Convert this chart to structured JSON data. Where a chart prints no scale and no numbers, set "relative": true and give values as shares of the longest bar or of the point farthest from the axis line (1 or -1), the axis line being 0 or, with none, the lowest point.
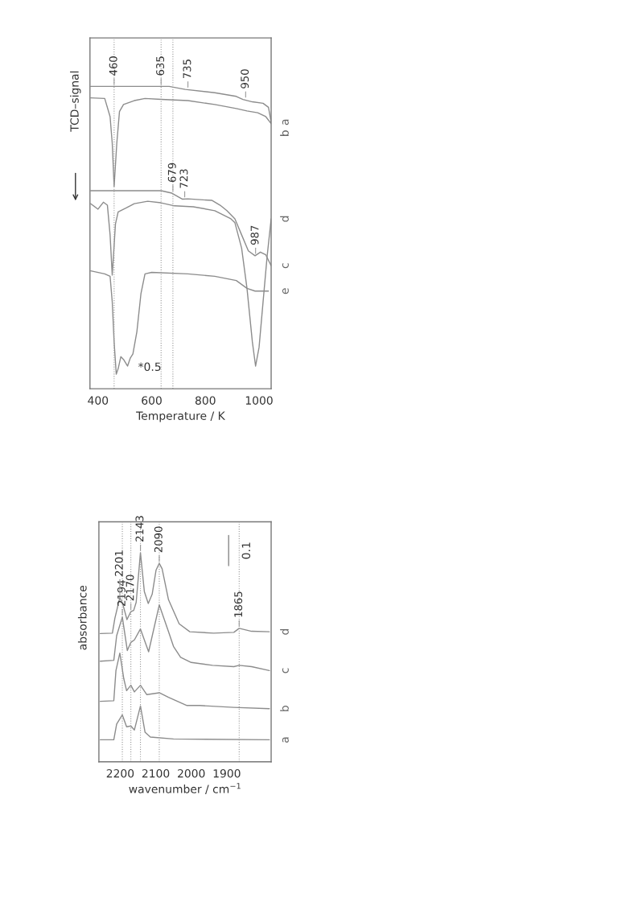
{
  "chart_data": [
    {
      "type": "line",
      "relative": true,
      "xlabel": "Temperature / K",
      "ylabel": "TCD–signal",
      "xlim": [
        370,
        1045
      ],
      "xticks": [
        400,
        600,
        800,
        1000
      ],
      "grid": false,
      "legend": false,
      "series": [
        {
          "name": "a",
          "color": "#8c8c8c",
          "x": [
            373,
            665,
            725,
            835,
            915,
            940,
            975,
            1015,
            1035,
            1045
          ],
          "values": [
            1.0,
            1.0,
            0.99,
            0.979,
            0.967,
            0.957,
            0.949,
            0.944,
            0.931,
            0.882
          ]
        },
        {
          "name": "b",
          "color": "#8c8c8c",
          "x": [
            373,
            425,
            445,
            453,
            460,
            470,
            480,
            495,
            535,
            575,
            635,
            735,
            835,
            915,
            955,
            995,
            1025,
            1045
          ],
          "values": [
            0.962,
            0.96,
            0.9,
            0.812,
            0.669,
            0.812,
            0.917,
            0.94,
            0.953,
            0.96,
            0.957,
            0.953,
            0.94,
            0.927,
            0.919,
            0.913,
            0.9,
            0.877
          ]
        },
        {
          "name": "c",
          "color": "#8c8c8c",
          "x": [
            373,
            635,
            675,
            715,
            735,
            825,
            855,
            880,
            910,
            935,
            960,
            985,
            1005,
            1025,
            1045
          ],
          "values": [
            0.655,
            0.655,
            0.647,
            0.627,
            0.628,
            0.623,
            0.607,
            0.589,
            0.562,
            0.509,
            0.456,
            0.44,
            0.452,
            0.443,
            0.407
          ]
        },
        {
          "name": "d",
          "color": "#8c8c8c",
          "x": [
            373,
            400,
            420,
            435,
            445,
            453,
            465,
            475,
            505,
            535,
            585,
            635,
            685,
            755,
            835,
            895,
            910,
            935,
            955,
            975,
            987,
            1000,
            1015,
            1030,
            1045
          ],
          "values": [
            0.612,
            0.594,
            0.617,
            0.607,
            0.509,
            0.376,
            0.545,
            0.585,
            0.598,
            0.612,
            0.62,
            0.615,
            0.605,
            0.602,
            0.589,
            0.562,
            0.549,
            0.465,
            0.332,
            0.155,
            0.075,
            0.137,
            0.288,
            0.438,
            0.562
          ]
        },
        {
          "name": "e",
          "color": "#8c8c8c",
          "x": [
            373,
            425,
            445,
            453,
            460,
            468,
            475,
            485,
            495,
            510,
            520,
            530,
            545,
            560,
            575,
            600,
            735,
            835,
            915,
            955,
            985,
            1035
          ],
          "values": [
            0.39,
            0.38,
            0.372,
            0.288,
            0.155,
            0.048,
            0.066,
            0.106,
            0.097,
            0.075,
            0.101,
            0.115,
            0.19,
            0.315,
            0.38,
            0.385,
            0.38,
            0.372,
            0.358,
            0.332,
            0.323,
            0.323
          ]
        }
      ],
      "ref_lines": [
        {
          "axis": "x",
          "value": 460,
          "line_style": "dotted"
        },
        {
          "axis": "x",
          "value": 635,
          "line_style": "dotted"
        },
        {
          "axis": "x",
          "value": 679,
          "line_style": "dotted"
        }
      ],
      "annotations": [
        {
          "text": "460",
          "x": 460,
          "y": 1.0
        },
        {
          "text": "635",
          "x": 635,
          "y": 1.0
        },
        {
          "text": "735",
          "x": 735,
          "y": 0.99
        },
        {
          "text": "950",
          "x": 950,
          "y": 0.957
        },
        {
          "text": "679",
          "x": 679,
          "y": 0.647
        },
        {
          "text": "723",
          "x": 723,
          "y": 0.627
        },
        {
          "text": "987",
          "x": 987,
          "y": 0.44
        },
        "*0.5"
      ]
    },
    {
      "type": "line",
      "relative": true,
      "xlabel": "wavenumber / cm$^{−1}$",
      "ylabel": "absorbance",
      "xlim": [
        2260,
        1775
      ],
      "xticks": [
        2200,
        2100,
        2000,
        1900
      ],
      "grid": false,
      "legend": false,
      "series": [
        {
          "name": "d",
          "color": "#8c8c8c",
          "x": [
            2256,
            2222,
            2215,
            2201,
            2192,
            2181,
            2170,
            2162,
            2155,
            2143,
            2132,
            2121,
            2110,
            2099,
            2090,
            2082,
            2064,
            2034,
            2004,
            1937,
            1880,
            1865,
            1830,
            1780
          ],
          "values": [
            0.613,
            0.615,
            0.686,
            0.786,
            0.75,
            0.68,
            0.718,
            0.724,
            0.763,
            1.0,
            0.814,
            0.757,
            0.801,
            0.917,
            0.949,
            0.923,
            0.775,
            0.66,
            0.622,
            0.615,
            0.619,
            0.638,
            0.624,
            0.622
          ]
        },
        {
          "name": "c",
          "color": "#8c8c8c",
          "x": [
            2256,
            2218,
            2210,
            2194,
            2180,
            2170,
            2160,
            2143,
            2120,
            2090,
            2064,
            2050,
            2030,
            2000,
            1940,
            1880,
            1865,
            1830,
            1780
          ],
          "values": [
            0.481,
            0.485,
            0.603,
            0.692,
            0.532,
            0.571,
            0.583,
            0.635,
            0.526,
            0.75,
            0.622,
            0.552,
            0.5,
            0.475,
            0.461,
            0.455,
            0.461,
            0.455,
            0.436
          ]
        },
        {
          "name": "b",
          "color": "#8c8c8c",
          "x": [
            2256,
            2218,
            2212,
            2201,
            2190,
            2182,
            2170,
            2160,
            2143,
            2125,
            2090,
            2064,
            2012,
            1976,
            1880,
            1780
          ],
          "values": [
            0.289,
            0.292,
            0.436,
            0.52,
            0.398,
            0.34,
            0.366,
            0.334,
            0.366,
            0.321,
            0.33,
            0.308,
            0.269,
            0.269,
            0.26,
            0.254
          ]
        },
        {
          "name": "a",
          "color": "#8c8c8c",
          "x": [
            2256,
            2218,
            2210,
            2194,
            2182,
            2170,
            2160,
            2143,
            2130,
            2115,
            2050,
            1780
          ],
          "values": [
            0.105,
            0.105,
            0.18,
            0.224,
            0.167,
            0.171,
            0.152,
            0.267,
            0.141,
            0.118,
            0.109,
            0.105
          ]
        }
      ],
      "ref_lines": [
        {
          "axis": "x",
          "value": 2194,
          "line_style": "dotted"
        },
        {
          "axis": "x",
          "value": 2170,
          "line_style": "dotted"
        },
        {
          "axis": "x",
          "value": 2143,
          "line_style": "dotted"
        },
        {
          "axis": "x",
          "value": 2090,
          "line_style": "dotted"
        },
        {
          "axis": "x",
          "value": 1865,
          "line_style": "dotted"
        }
      ],
      "annotations": [
        {
          "text": "2201",
          "x": 2201,
          "y": 0.786
        },
        {
          "text": "2194",
          "x": 2194,
          "y": 0.692
        },
        {
          "text": "2170",
          "x": 2170,
          "y": 0.718
        },
        {
          "text": "2143",
          "x": 2143,
          "y": 1.0
        },
        {
          "text": "2090",
          "x": 2090,
          "y": 0.949
        },
        {
          "text": "1865",
          "x": 1865,
          "y": 0.638
        },
        "0.1"
      ]
    }
  ]
}
